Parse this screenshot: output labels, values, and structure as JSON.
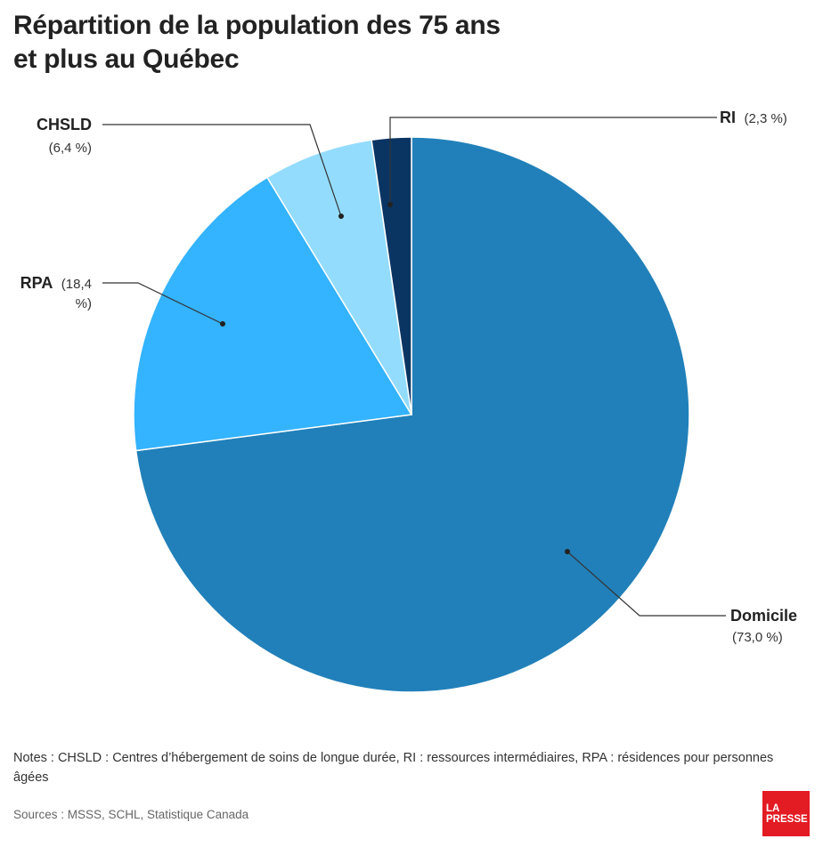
{
  "header": {
    "title_line1": "Répartition de la population des 75 ans",
    "title_line2": "et plus au Québec"
  },
  "chart_data": {
    "type": "pie",
    "title": "Répartition de la population des 75 ans et plus au Québec",
    "slices": [
      {
        "label": "Domicile",
        "value": 73.0,
        "value_text": "(73,0 %)",
        "color": "#2180b9"
      },
      {
        "label": "RPA",
        "value": 18.4,
        "value_text": "(18,4 %)",
        "value_text_line1": "(18,4",
        "value_text_line2": "%)",
        "color": "#34b3fe"
      },
      {
        "label": "CHSLD",
        "value": 6.4,
        "value_text": "(6,4 %)",
        "color": "#93dcfd"
      },
      {
        "label": "RI",
        "value": 2.3,
        "value_text": "(2,3 %)",
        "color": "#0a3563"
      }
    ]
  },
  "footer": {
    "notes": "Notes : CHSLD : Centres d’hébergement de soins de longue durée, RI : ressources intermédiaires, RPA : résidences pour personnes âgées",
    "sources": "Sources : MSSS, SCHL, Statistique Canada",
    "logo_line1": "LA",
    "logo_line2": "PRESSE"
  }
}
